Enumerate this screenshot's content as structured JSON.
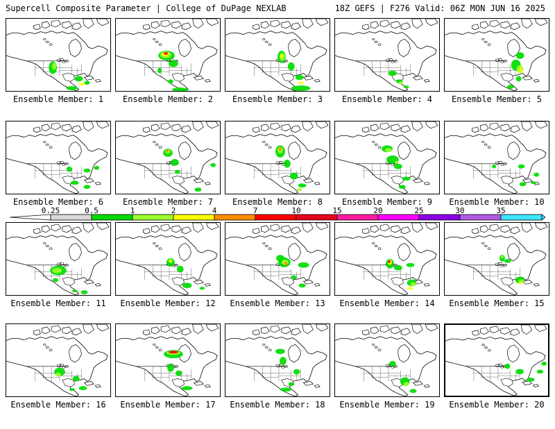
{
  "header": {
    "title_left": "Supercell Composite Parameter | College of DuPage NEXLAB",
    "title_right": "18Z GEFS | F276 Valid: 06Z MON JUN 16 2025"
  },
  "colorbar": {
    "ticks": [
      "0.25",
      "0.5",
      "1",
      "2",
      "4",
      "7",
      "10",
      "15",
      "20",
      "25",
      "30",
      "35"
    ],
    "colors": [
      "#d9d9d9",
      "#00dc00",
      "#9eff2e",
      "#ffff00",
      "#ff8c00",
      "#ff0000",
      "#e8001c",
      "#ff1a9e",
      "#ff00ff",
      "#8c00e6",
      "#b05ce0",
      "#3ce6ff"
    ],
    "left_arrow_color": "#ffffff",
    "right_arrow_color": "#3ce6ff"
  },
  "members": [
    {
      "label": "Ensemble Member: 1"
    },
    {
      "label": "Ensemble Member: 2"
    },
    {
      "label": "Ensemble Member: 3"
    },
    {
      "label": "Ensemble Member: 4"
    },
    {
      "label": "Ensemble Member: 5"
    },
    {
      "label": "Ensemble Member: 6"
    },
    {
      "label": "Ensemble Member: 7"
    },
    {
      "label": "Ensemble Member: 8"
    },
    {
      "label": "Ensemble Member: 9"
    },
    {
      "label": "Ensemble Member: 10"
    },
    {
      "label": "Ensemble Member: 11"
    },
    {
      "label": "Ensemble Member: 12"
    },
    {
      "label": "Ensemble Member: 13"
    },
    {
      "label": "Ensemble Member: 14"
    },
    {
      "label": "Ensemble Member: 15"
    },
    {
      "label": "Ensemble Member: 16"
    },
    {
      "label": "Ensemble Member: 17"
    },
    {
      "label": "Ensemble Member: 18"
    },
    {
      "label": "Ensemble Member: 19"
    },
    {
      "label": "Ensemble Member: 20"
    }
  ]
}
